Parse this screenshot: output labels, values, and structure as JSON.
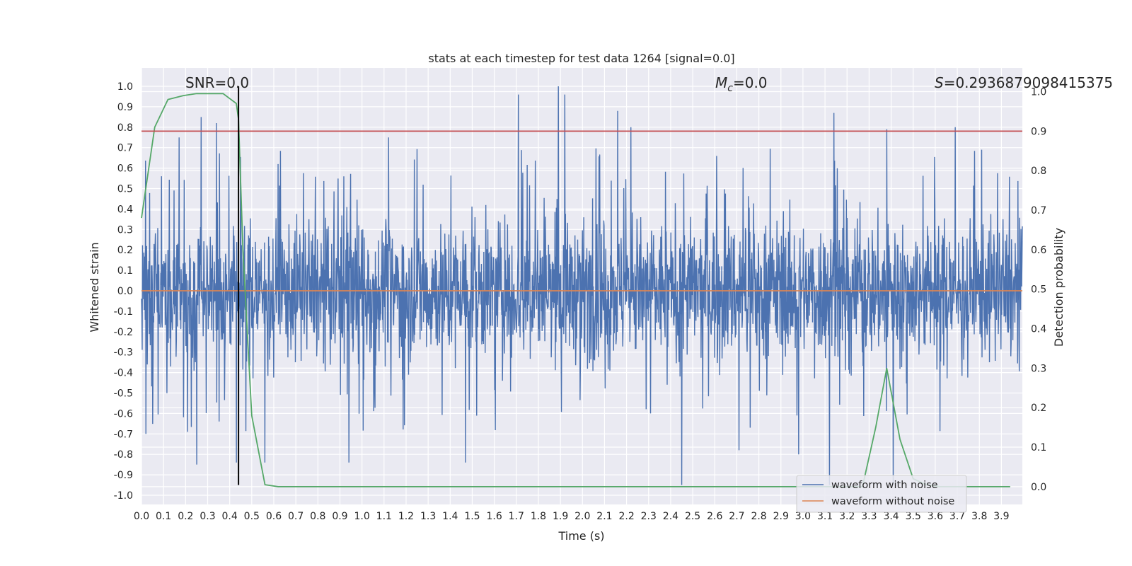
{
  "chart_data": {
    "type": "line",
    "title": "stats at each timestep for test data 1264 [signal=0.0]",
    "xlabel": "Time (s)",
    "ylabel": "Whitened strain",
    "y2label": "Detection probability",
    "xlim": [
      0.0,
      3.995
    ],
    "ylim": [
      -1.045,
      1.09
    ],
    "y2lim": [
      -0.045,
      1.06
    ],
    "xticks": [
      "0.0",
      "0.1",
      "0.2",
      "0.3",
      "0.4",
      "0.5",
      "0.6",
      "0.7",
      "0.8",
      "0.9",
      "1.0",
      "1.1",
      "1.2",
      "1.3",
      "1.4",
      "1.5",
      "1.6",
      "1.7",
      "1.8",
      "1.9",
      "2.0",
      "2.1",
      "2.2",
      "2.3",
      "2.4",
      "2.5",
      "2.6",
      "2.7",
      "2.8",
      "2.9",
      "3.0",
      "3.1",
      "3.2",
      "3.3",
      "3.4",
      "3.5",
      "3.6",
      "3.7",
      "3.8",
      "3.9"
    ],
    "yticks": [
      "1.0",
      "0.9",
      "0.8",
      "0.7",
      "0.6",
      "0.5",
      "0.4",
      "0.3",
      "0.2",
      "0.1",
      "0.0",
      "-0.1",
      "-0.2",
      "-0.3",
      "-0.4",
      "-0.5",
      "-0.6",
      "-0.7",
      "-0.8",
      "-0.9",
      "-1.0"
    ],
    "y2ticks": [
      "1.0",
      "0.9",
      "0.8",
      "0.7",
      "0.6",
      "0.5",
      "0.4",
      "0.3",
      "0.2",
      "0.1",
      "0.0"
    ],
    "grid": true,
    "legend_position": "bottom-right",
    "annotations": {
      "snr": "SNR=0.0",
      "mc_symbol": "M",
      "mc_sub": "c",
      "mc_value": "=0.0",
      "s_symbol": "S",
      "s_value": "=0.2936879098415375"
    },
    "series": [
      {
        "name": "waveform with noise",
        "axis": "left",
        "color": "#4c72b0",
        "description": "dense whitened noise trace, mostly within [-0.5, 0.6], spikes reaching about 1.0 and -0.95",
        "amplitude_core": 0.45,
        "peaks": [
          {
            "t": 0.02,
            "v": -0.7
          },
          {
            "t": 0.09,
            "v": 0.56
          },
          {
            "t": 0.17,
            "v": 0.75
          },
          {
            "t": 0.27,
            "v": 0.85
          },
          {
            "t": 0.25,
            "v": -0.85
          },
          {
            "t": 0.34,
            "v": 0.82
          },
          {
            "t": 0.43,
            "v": -0.84
          },
          {
            "t": 0.62,
            "v": 0.62
          },
          {
            "t": 0.56,
            "v": -0.84
          },
          {
            "t": 0.94,
            "v": -0.84
          },
          {
            "t": 1.12,
            "v": 0.75
          },
          {
            "t": 1.47,
            "v": -0.84
          },
          {
            "t": 1.71,
            "v": 0.96
          },
          {
            "t": 1.89,
            "v": 1.0
          },
          {
            "t": 1.92,
            "v": 0.96
          },
          {
            "t": 2.16,
            "v": 0.88
          },
          {
            "t": 2.22,
            "v": 0.8
          },
          {
            "t": 2.45,
            "v": -0.95
          },
          {
            "t": 2.71,
            "v": -0.78
          },
          {
            "t": 2.98,
            "v": -0.8
          },
          {
            "t": 3.12,
            "v": -0.95
          },
          {
            "t": 3.14,
            "v": 0.87
          },
          {
            "t": 3.38,
            "v": 0.79
          },
          {
            "t": 3.41,
            "v": -0.95
          },
          {
            "t": 3.69,
            "v": 0.8
          },
          {
            "t": 3.81,
            "v": 0.69
          }
        ]
      },
      {
        "name": "waveform without noise",
        "axis": "left",
        "color": "#dd8452",
        "x": [
          0.0,
          3.995
        ],
        "y": [
          0.0,
          0.0
        ]
      },
      {
        "name": "detection probability",
        "axis": "right",
        "color": "#55a868",
        "x": [
          0.0,
          0.06,
          0.12,
          0.19,
          0.25,
          0.31,
          0.37,
          0.43,
          0.44,
          0.46,
          0.5,
          0.56,
          0.62,
          0.69,
          3.2,
          3.27,
          3.33,
          3.38,
          3.44,
          3.5,
          3.56,
          3.62,
          3.7,
          3.8,
          3.94
        ],
        "y": [
          0.68,
          0.91,
          0.98,
          0.99,
          0.995,
          0.995,
          0.995,
          0.97,
          0.93,
          0.6,
          0.18,
          0.005,
          0.0,
          0.0,
          0.0,
          0.0,
          0.15,
          0.3,
          0.12,
          0.02,
          0.005,
          0.0,
          0.0,
          0.0,
          0.0
        ]
      },
      {
        "name": "threshold",
        "axis": "right",
        "color": "#c44e52",
        "x": [
          0.0,
          3.995
        ],
        "y": [
          0.9,
          0.9
        ]
      },
      {
        "name": "marker",
        "axis": "left",
        "color": "#000000",
        "x": [
          0.44,
          0.44
        ],
        "y": [
          -0.95,
          1.0
        ]
      }
    ],
    "legend": [
      {
        "label": "waveform with noise",
        "color": "#4c72b0"
      },
      {
        "label": "waveform without noise",
        "color": "#dd8452"
      }
    ]
  }
}
